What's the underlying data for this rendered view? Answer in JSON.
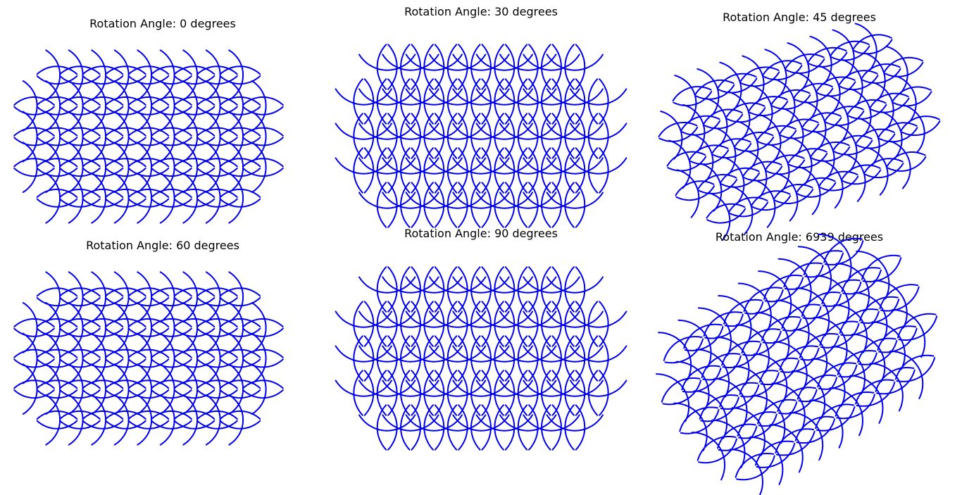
{
  "figure": {
    "background": "#ffffff",
    "line_color": "#0000ee"
  },
  "chart_data": [
    {
      "type": "line",
      "title": "Rotation Angle: 0 degrees",
      "rotation_deg": 0,
      "axes": "off",
      "grid": false,
      "legend": "none",
      "pattern_rows": 5,
      "pattern_cols": 11
    },
    {
      "type": "line",
      "title": "Rotation Angle: 30 degrees",
      "rotation_deg": 30,
      "axes": "off",
      "grid": false,
      "legend": "none",
      "pattern_rows": 5,
      "pattern_cols": 11
    },
    {
      "type": "line",
      "title": "Rotation Angle: 45 degrees",
      "rotation_deg": 45,
      "axes": "off",
      "grid": false,
      "legend": "none",
      "pattern_rows": 5,
      "pattern_cols": 11
    },
    {
      "type": "line",
      "title": "Rotation Angle: 60 degrees",
      "rotation_deg": 60,
      "axes": "off",
      "grid": false,
      "legend": "none",
      "pattern_rows": 5,
      "pattern_cols": 11
    },
    {
      "type": "line",
      "title": "Rotation Angle: 90 degrees",
      "rotation_deg": 90,
      "axes": "off",
      "grid": false,
      "legend": "none",
      "pattern_rows": 5,
      "pattern_cols": 11
    },
    {
      "type": "line",
      "title": "Rotation Angle: 6939 degrees",
      "rotation_deg": 6939,
      "axes": "off",
      "grid": false,
      "legend": "none",
      "pattern_rows": 5,
      "pattern_cols": 11
    }
  ]
}
